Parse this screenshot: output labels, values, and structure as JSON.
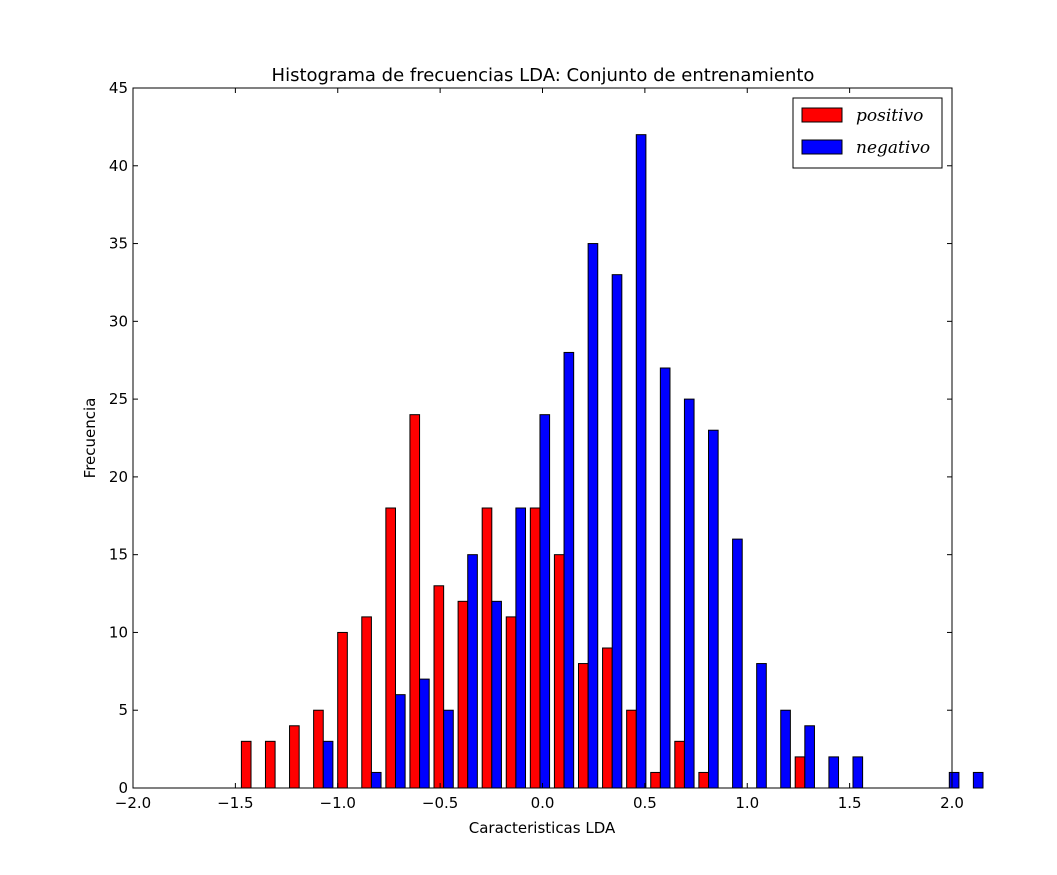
{
  "chart_data": {
    "type": "bar",
    "title": "Histograma de frecuencias LDA: Conjunto de entrenamiento",
    "xlabel": "Caracteristicas LDA",
    "ylabel": "Frecuencia",
    "xlim": [
      -2.0,
      2.0
    ],
    "ylim": [
      0,
      45
    ],
    "xticks": [
      -2.0,
      -1.5,
      -1.0,
      -0.5,
      0.0,
      0.5,
      1.0,
      1.5,
      2.0
    ],
    "xtick_labels": [
      "−2.0",
      "−1.5",
      "−1.0",
      "−0.5",
      "0.0",
      "0.5",
      "1.0",
      "1.5",
      "2.0"
    ],
    "yticks": [
      0,
      5,
      10,
      15,
      20,
      25,
      30,
      35,
      40,
      45
    ],
    "ytick_labels": [
      "0",
      "5",
      "10",
      "15",
      "20",
      "25",
      "30",
      "35",
      "40",
      "45"
    ],
    "grid": false,
    "legend_position": "top-right",
    "bin_start": -1.6,
    "bin_width": 0.1176,
    "series": [
      {
        "name": "positivo",
        "color": "#ff0000",
        "values": [
          0,
          3,
          3,
          4,
          5,
          10,
          11,
          18,
          24,
          13,
          12,
          18,
          11,
          18,
          15,
          8,
          9,
          5,
          1,
          3,
          1,
          0,
          0,
          0,
          2,
          0,
          0,
          0,
          0,
          0,
          0,
          0,
          0,
          0
        ]
      },
      {
        "name": "negativo",
        "color": "#0000ff",
        "values": [
          0,
          0,
          0,
          0,
          3,
          0,
          1,
          6,
          7,
          5,
          15,
          12,
          18,
          24,
          28,
          35,
          33,
          42,
          27,
          25,
          23,
          16,
          8,
          5,
          4,
          2,
          2,
          0,
          0,
          0,
          1,
          1,
          0,
          0
        ]
      }
    ]
  }
}
